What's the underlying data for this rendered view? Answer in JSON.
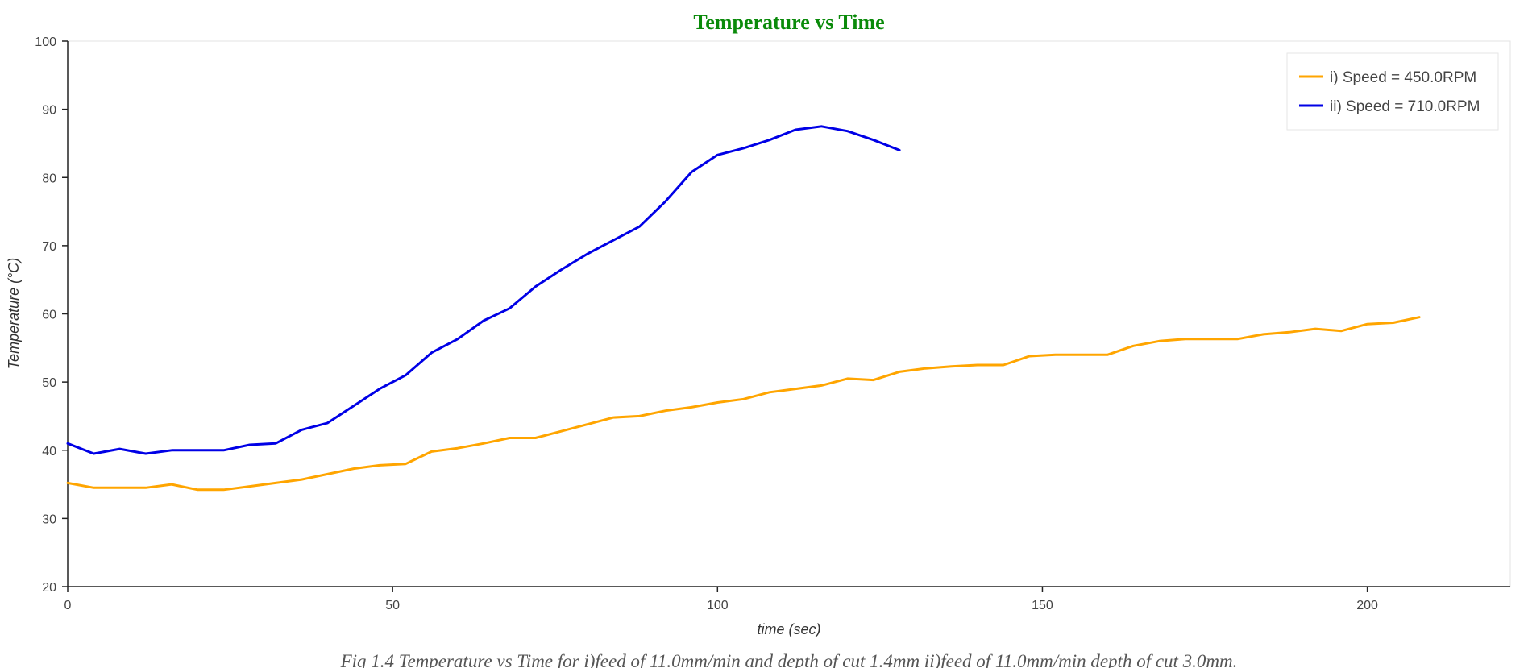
{
  "chart_data": {
    "type": "line",
    "title": "Temperature vs Time",
    "xlabel": "time (sec)",
    "ylabel": "Temperature (°C)",
    "xlim": [
      0,
      222
    ],
    "ylim": [
      20,
      100
    ],
    "xticks": [
      0,
      50,
      100,
      150,
      200
    ],
    "yticks": [
      20,
      30,
      40,
      50,
      60,
      70,
      80,
      90,
      100
    ],
    "grid": false,
    "legend_position": "top-right",
    "caption": "Fig 1.4 Temperature vs Time for i)feed of 11.0mm/min and depth of cut 1.4mm ii)feed of 11.0mm/min depth of cut 3.0mm.",
    "series": [
      {
        "name": "i) Speed = 450.0RPM",
        "color": "#ffa500",
        "x": [
          0,
          4,
          8,
          12,
          16,
          20,
          24,
          28,
          32,
          36,
          40,
          44,
          48,
          52,
          56,
          60,
          64,
          68,
          72,
          76,
          80,
          84,
          88,
          92,
          96,
          100,
          104,
          108,
          112,
          116,
          120,
          124,
          128,
          132,
          136,
          140,
          144,
          148,
          152,
          156,
          160,
          164,
          168,
          172,
          176,
          180,
          184,
          188,
          192,
          196,
          200,
          204,
          208
        ],
        "y": [
          35.2,
          34.5,
          34.5,
          34.5,
          35.0,
          34.2,
          34.2,
          34.7,
          35.2,
          35.7,
          36.5,
          37.3,
          37.8,
          38.0,
          39.8,
          40.3,
          41.0,
          41.8,
          41.8,
          42.8,
          43.8,
          44.8,
          45.0,
          45.8,
          46.3,
          47.0,
          47.5,
          48.5,
          49.0,
          49.5,
          50.5,
          50.3,
          51.5,
          52.0,
          52.3,
          52.5,
          52.5,
          53.8,
          54.0,
          54.0,
          54.0,
          55.3,
          56.0,
          56.3,
          56.3,
          56.3,
          57.0,
          57.3,
          57.8,
          57.5,
          58.5,
          58.7,
          59.5
        ]
      },
      {
        "name": "ii) Speed = 710.0RPM",
        "color": "#0000e6",
        "x": [
          0,
          4,
          8,
          12,
          16,
          20,
          24,
          28,
          32,
          36,
          40,
          44,
          48,
          52,
          56,
          60,
          64,
          68,
          72,
          76,
          80,
          84,
          88,
          92,
          96,
          100,
          104,
          108,
          112,
          116,
          120,
          124,
          128
        ],
        "y": [
          41.0,
          39.5,
          40.2,
          39.5,
          40.0,
          40.0,
          40.0,
          40.8,
          41.0,
          43.0,
          44.0,
          46.5,
          49.0,
          51.0,
          54.3,
          56.3,
          59.0,
          60.8,
          64.0,
          66.5,
          68.8,
          70.8,
          72.8,
          76.5,
          80.8,
          83.3,
          84.3,
          85.5,
          87.0,
          87.5,
          86.8,
          85.5,
          84.0
        ]
      }
    ]
  }
}
